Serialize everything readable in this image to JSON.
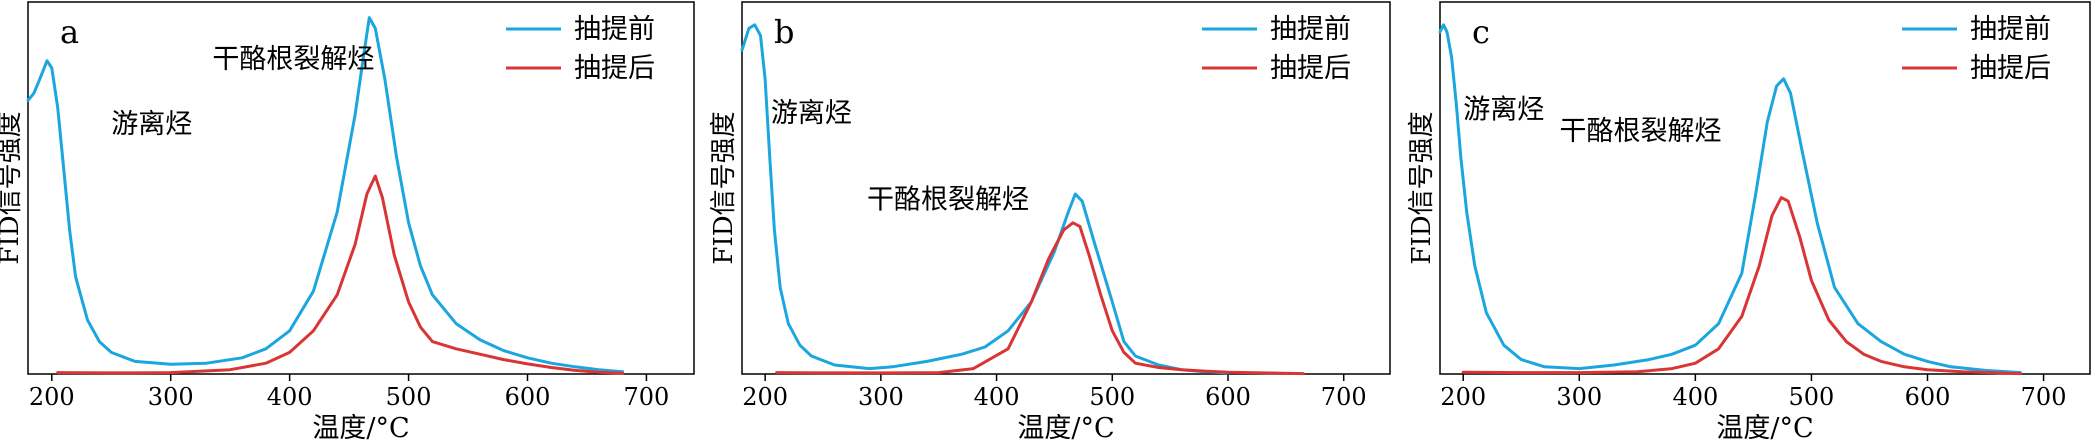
{
  "legend": {
    "before": "抽提前",
    "after": "抽提后"
  },
  "colors": {
    "before": "#1ba6e0",
    "after": "#d93535"
  },
  "chart_data": [
    {
      "type": "line",
      "panel": "a",
      "xlabel": "温度/°C",
      "ylabel": "FID信号强度",
      "xlim": [
        180,
        740
      ],
      "ylim": [
        0,
        100
      ],
      "xticks": [
        200,
        300,
        400,
        500,
        600,
        700
      ],
      "annotations": [
        {
          "text": "游离烃",
          "x": 250,
          "y": 67
        },
        {
          "text": "干酪根裂解烃",
          "x": 335,
          "y": 85
        }
      ],
      "series": [
        {
          "name": "抽提前",
          "points": [
            [
              180,
              76
            ],
            [
              185,
              78
            ],
            [
              190,
              82
            ],
            [
              196,
              87
            ],
            [
              200,
              85
            ],
            [
              205,
              74
            ],
            [
              210,
              57
            ],
            [
              215,
              40
            ],
            [
              220,
              27
            ],
            [
              230,
              15
            ],
            [
              240,
              9
            ],
            [
              250,
              6
            ],
            [
              270,
              3.5
            ],
            [
              300,
              2.7
            ],
            [
              330,
              3
            ],
            [
              360,
              4.5
            ],
            [
              380,
              7
            ],
            [
              400,
              12
            ],
            [
              420,
              23
            ],
            [
              440,
              45
            ],
            [
              455,
              72
            ],
            [
              462,
              88
            ],
            [
              467,
              99
            ],
            [
              472,
              96
            ],
            [
              480,
              82
            ],
            [
              490,
              60
            ],
            [
              500,
              42
            ],
            [
              510,
              30
            ],
            [
              520,
              22
            ],
            [
              540,
              14
            ],
            [
              560,
              9.5
            ],
            [
              580,
              6.5
            ],
            [
              600,
              4.5
            ],
            [
              620,
              3
            ],
            [
              640,
              2
            ],
            [
              660,
              1.2
            ],
            [
              680,
              0.6
            ]
          ]
        },
        {
          "name": "抽提后",
          "points": [
            [
              205,
              0.4
            ],
            [
              250,
              0.3
            ],
            [
              300,
              0.4
            ],
            [
              350,
              1.2
            ],
            [
              380,
              3
            ],
            [
              400,
              6
            ],
            [
              420,
              12
            ],
            [
              440,
              22
            ],
            [
              455,
              36
            ],
            [
              465,
              50
            ],
            [
              472,
              55
            ],
            [
              478,
              49
            ],
            [
              488,
              33
            ],
            [
              500,
              20
            ],
            [
              510,
              13
            ],
            [
              520,
              9
            ],
            [
              540,
              7
            ],
            [
              560,
              5.5
            ],
            [
              580,
              4
            ],
            [
              600,
              2.8
            ],
            [
              620,
              1.8
            ],
            [
              640,
              1
            ],
            [
              660,
              0.5
            ],
            [
              680,
              0.2
            ]
          ]
        }
      ]
    },
    {
      "type": "line",
      "panel": "b",
      "xlabel": "温度/°C",
      "ylabel": "FID信号强度",
      "xlim": [
        180,
        740
      ],
      "ylim": [
        0,
        100
      ],
      "xticks": [
        200,
        300,
        400,
        500,
        600,
        700
      ],
      "annotations": [
        {
          "text": "游离烃",
          "x": 205,
          "y": 70
        },
        {
          "text": "干酪根裂解烃",
          "x": 288,
          "y": 46
        }
      ],
      "series": [
        {
          "name": "抽提前",
          "points": [
            [
              180,
              90
            ],
            [
              186,
              96
            ],
            [
              191,
              97
            ],
            [
              196,
              94
            ],
            [
              200,
              82
            ],
            [
              204,
              60
            ],
            [
              208,
              40
            ],
            [
              213,
              24
            ],
            [
              220,
              14
            ],
            [
              230,
              8
            ],
            [
              240,
              5
            ],
            [
              260,
              2.5
            ],
            [
              290,
              1.5
            ],
            [
              310,
              2
            ],
            [
              340,
              3.5
            ],
            [
              370,
              5.5
            ],
            [
              390,
              7.5
            ],
            [
              410,
              12
            ],
            [
              430,
              20
            ],
            [
              450,
              34
            ],
            [
              462,
              45
            ],
            [
              468,
              50
            ],
            [
              474,
              48
            ],
            [
              485,
              36
            ],
            [
              500,
              20
            ],
            [
              510,
              9
            ],
            [
              520,
              5
            ],
            [
              540,
              2.5
            ],
            [
              560,
              1.2
            ],
            [
              580,
              0.6
            ],
            [
              600,
              0.3
            ]
          ]
        },
        {
          "name": "抽提后",
          "points": [
            [
              210,
              0.4
            ],
            [
              250,
              0.3
            ],
            [
              300,
              0.3
            ],
            [
              350,
              0.4
            ],
            [
              380,
              1.5
            ],
            [
              410,
              7
            ],
            [
              430,
              20
            ],
            [
              445,
              32
            ],
            [
              458,
              40
            ],
            [
              466,
              42
            ],
            [
              472,
              41
            ],
            [
              480,
              33
            ],
            [
              490,
              22
            ],
            [
              500,
              12
            ],
            [
              510,
              6
            ],
            [
              520,
              3
            ],
            [
              540,
              1.8
            ],
            [
              560,
              1.2
            ],
            [
              580,
              0.8
            ],
            [
              600,
              0.5
            ],
            [
              630,
              0.3
            ],
            [
              665,
              0.1
            ]
          ]
        }
      ]
    },
    {
      "type": "line",
      "panel": "c",
      "xlabel": "温度/°C",
      "ylabel": "FID信号强度",
      "xlim": [
        180,
        740
      ],
      "ylim": [
        0,
        100
      ],
      "xticks": [
        200,
        300,
        400,
        500,
        600,
        700
      ],
      "annotations": [
        {
          "text": "游离烃",
          "x": 200,
          "y": 71
        },
        {
          "text": "干酪根裂解烃",
          "x": 283,
          "y": 65
        }
      ],
      "series": [
        {
          "name": "抽提前",
          "points": [
            [
              180,
              95
            ],
            [
              183,
              97
            ],
            [
              186,
              95
            ],
            [
              190,
              88
            ],
            [
              194,
              75
            ],
            [
              198,
              60
            ],
            [
              203,
              45
            ],
            [
              210,
              30
            ],
            [
              220,
              17
            ],
            [
              235,
              8
            ],
            [
              250,
              4
            ],
            [
              270,
              2
            ],
            [
              300,
              1.5
            ],
            [
              330,
              2.5
            ],
            [
              360,
              4
            ],
            [
              380,
              5.5
            ],
            [
              400,
              8
            ],
            [
              420,
              14
            ],
            [
              440,
              28
            ],
            [
              452,
              50
            ],
            [
              462,
              70
            ],
            [
              470,
              80
            ],
            [
              476,
              82
            ],
            [
              482,
              78
            ],
            [
              492,
              62
            ],
            [
              505,
              42
            ],
            [
              520,
              24
            ],
            [
              540,
              14
            ],
            [
              560,
              9
            ],
            [
              580,
              5.5
            ],
            [
              600,
              3.5
            ],
            [
              620,
              2
            ],
            [
              650,
              1
            ],
            [
              680,
              0.4
            ]
          ]
        },
        {
          "name": "抽提后",
          "points": [
            [
              200,
              0.5
            ],
            [
              250,
              0.4
            ],
            [
              300,
              0.4
            ],
            [
              350,
              0.6
            ],
            [
              380,
              1.5
            ],
            [
              400,
              3
            ],
            [
              420,
              7
            ],
            [
              440,
              16
            ],
            [
              455,
              30
            ],
            [
              466,
              44
            ],
            [
              474,
              49
            ],
            [
              480,
              48
            ],
            [
              490,
              38
            ],
            [
              500,
              26
            ],
            [
              515,
              15
            ],
            [
              530,
              9
            ],
            [
              545,
              5.5
            ],
            [
              560,
              3.5
            ],
            [
              580,
              2
            ],
            [
              600,
              1.2
            ],
            [
              630,
              0.6
            ],
            [
              660,
              0.3
            ],
            [
              680,
              0.1
            ]
          ]
        }
      ]
    }
  ]
}
